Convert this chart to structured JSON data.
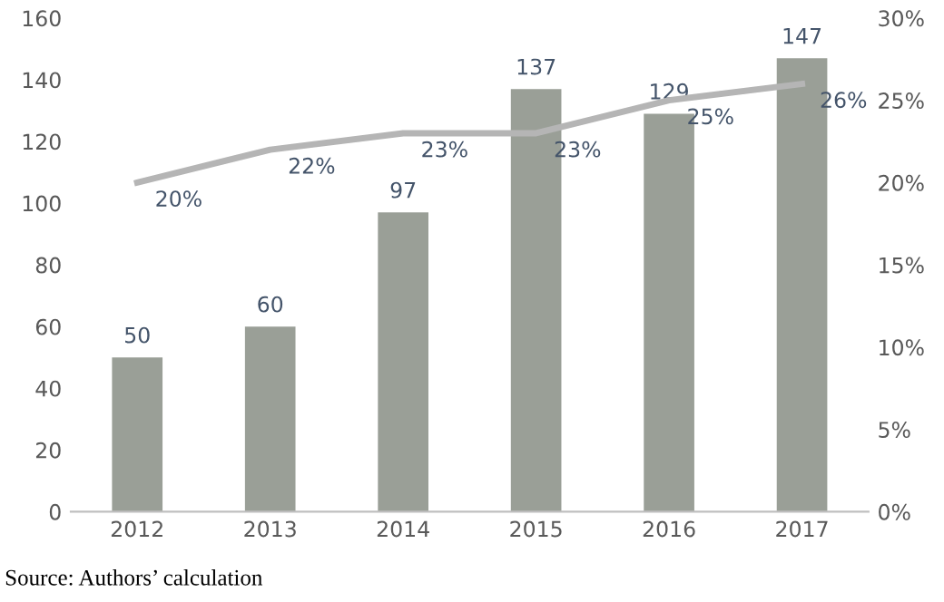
{
  "chart_data": {
    "type": "bar",
    "categories": [
      "2012",
      "2013",
      "2014",
      "2015",
      "2016",
      "2017"
    ],
    "series": [
      {
        "color": "#9a9f97",
        "values": [
          50,
          60,
          97,
          137,
          129,
          147
        ],
        "value_labels": [
          "50",
          "60",
          "97",
          "137",
          "129",
          "147"
        ]
      },
      {
        "type": "line",
        "axis": "y2",
        "color": "#b5b5b5",
        "values": [
          20,
          22,
          23,
          23,
          25,
          26
        ],
        "value_labels": [
          "20%",
          "22%",
          "23%",
          "23%",
          "25%",
          "26%"
        ],
        "marker": "none"
      }
    ],
    "ylim": [
      0,
      160
    ],
    "yticks": [
      0,
      20,
      40,
      60,
      80,
      100,
      120,
      140,
      160
    ],
    "y2lim": [
      0,
      30
    ],
    "y2ticks": [
      {
        "value": 0,
        "label": "0%"
      },
      {
        "value": 5,
        "label": "5%"
      },
      {
        "value": 10,
        "label": "10%"
      },
      {
        "value": 15,
        "label": "15%"
      },
      {
        "value": 20,
        "label": "20%"
      },
      {
        "value": 25,
        "label": "25%"
      },
      {
        "value": 30,
        "label": "30%"
      }
    ],
    "grid": false,
    "annotations": [
      "Source: Authors’ calculation"
    ]
  }
}
